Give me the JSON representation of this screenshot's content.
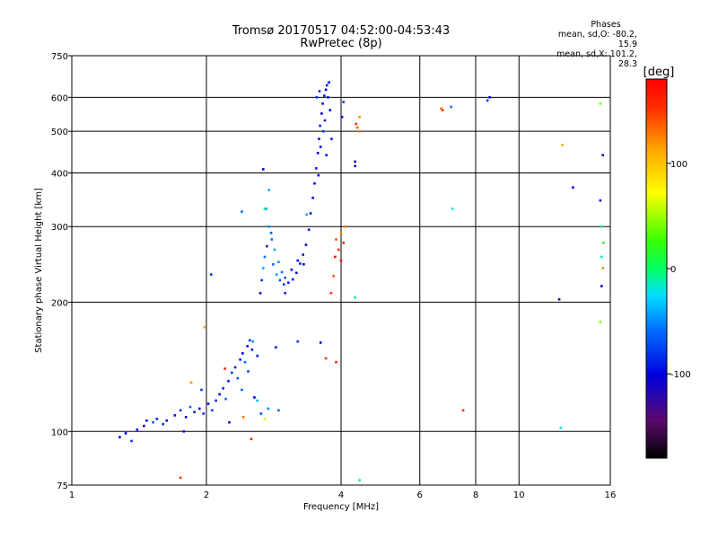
{
  "header": {
    "title": "Tromsø 20170517 04:52:00-04:53:43",
    "subtitle": "RwPretec (8p)"
  },
  "phases": {
    "title": "Phases",
    "line_o": "mean, sd,O: -80.2, 15.9",
    "line_x": "mean, sd,X: 101.2, 28.3"
  },
  "colorbar": {
    "label": "[deg]",
    "min": -180,
    "max": 180,
    "ticks": [
      -100,
      0,
      100
    ],
    "tick_labels": [
      "-100",
      "0",
      "100"
    ]
  },
  "chart_data": {
    "type": "scatter",
    "xlabel": "Frequency [MHz]",
    "ylabel": "Stationary phase Virtual Height [km]",
    "xscale": "log",
    "yscale": "log",
    "xlim": [
      1,
      16
    ],
    "ylim": [
      75,
      750
    ],
    "xticks": [
      1,
      2,
      4,
      6,
      8,
      10,
      16
    ],
    "xtick_labels": [
      "1",
      "2",
      "4",
      "6",
      "8",
      "10",
      "16"
    ],
    "yticks": [
      75,
      100,
      200,
      300,
      400,
      500,
      600,
      750
    ],
    "ytick_labels": [
      "75",
      "100",
      "200",
      "300",
      "400",
      "500",
      "600",
      "750"
    ],
    "grid": true,
    "series": [
      {
        "points": [
          [
            1.28,
            97,
            -95
          ],
          [
            1.32,
            99,
            -100
          ],
          [
            1.36,
            95,
            -80
          ],
          [
            1.4,
            101,
            -90
          ],
          [
            1.45,
            103,
            -100
          ],
          [
            1.47,
            106,
            -95
          ],
          [
            1.52,
            105,
            -70
          ],
          [
            1.55,
            107,
            -90
          ],
          [
            1.6,
            104,
            -85
          ],
          [
            1.63,
            106,
            -100
          ],
          [
            1.7,
            109,
            -95
          ],
          [
            1.75,
            112,
            -80
          ],
          [
            1.8,
            108,
            -95
          ],
          [
            1.84,
            114,
            -60
          ],
          [
            1.88,
            111,
            -90
          ],
          [
            1.93,
            113,
            -100
          ],
          [
            1.97,
            110,
            -85
          ],
          [
            2.02,
            116,
            -95
          ],
          [
            2.06,
            112,
            -75
          ],
          [
            2.1,
            118,
            -90
          ],
          [
            2.14,
            122,
            -100
          ],
          [
            2.18,
            126,
            -85
          ],
          [
            2.21,
            119,
            -60
          ],
          [
            2.24,
            131,
            -95
          ],
          [
            2.28,
            137,
            -80
          ],
          [
            2.32,
            141,
            -90
          ],
          [
            2.35,
            133,
            -70
          ],
          [
            2.38,
            147,
            -95
          ],
          [
            2.41,
            152,
            -100
          ],
          [
            2.44,
            145,
            -60
          ],
          [
            2.47,
            158,
            -95
          ],
          [
            2.5,
            163,
            -80
          ],
          [
            2.53,
            155,
            -90
          ],
          [
            2.56,
            120,
            -100
          ],
          [
            2.6,
            118,
            -40
          ],
          [
            2.65,
            110,
            -70
          ],
          [
            2.75,
            113,
            -50
          ],
          [
            2.9,
            112,
            -60
          ],
          [
            1.78,
            100,
            -95
          ],
          [
            1.95,
            125,
            -80
          ],
          [
            2.25,
            105,
            -100
          ],
          [
            2.4,
            125,
            -60
          ],
          [
            2.48,
            138,
            -75
          ],
          [
            2.52,
            96,
            160
          ],
          [
            2.54,
            162,
            -50
          ],
          [
            2.6,
            150,
            -100
          ],
          [
            2.86,
            157,
            -90
          ],
          [
            3.2,
            162,
            -80
          ],
          [
            3.6,
            161,
            -100
          ],
          [
            1.75,
            78,
            150
          ],
          [
            1.85,
            130,
            120
          ],
          [
            1.98,
            175,
            110
          ],
          [
            2.2,
            140,
            160
          ],
          [
            2.42,
            108,
            130
          ],
          [
            2.7,
            107,
            60
          ],
          [
            2.64,
            210,
            -100
          ],
          [
            2.66,
            225,
            -80
          ],
          [
            2.68,
            240,
            -40
          ],
          [
            2.7,
            255,
            -60
          ],
          [
            2.73,
            270,
            -90
          ],
          [
            2.76,
            300,
            -50
          ],
          [
            2.79,
            290,
            -70
          ],
          [
            2.82,
            245,
            -60
          ],
          [
            2.87,
            232,
            -45
          ],
          [
            2.92,
            225,
            -70
          ],
          [
            2.98,
            220,
            -80
          ],
          [
            3.05,
            222,
            -90
          ],
          [
            3.12,
            226,
            -95
          ],
          [
            3.18,
            234,
            -100
          ],
          [
            3.24,
            246,
            -90
          ],
          [
            3.29,
            258,
            -95
          ],
          [
            3.34,
            272,
            -100
          ],
          [
            3.39,
            295,
            -90
          ],
          [
            3.42,
            322,
            -95
          ],
          [
            3.46,
            350,
            -100
          ],
          [
            3.49,
            378,
            -95
          ],
          [
            3.52,
            410,
            -90
          ],
          [
            3.55,
            445,
            -100
          ],
          [
            3.57,
            480,
            -95
          ],
          [
            3.59,
            515,
            -90
          ],
          [
            3.62,
            550,
            -100
          ],
          [
            3.64,
            580,
            -95
          ],
          [
            3.67,
            605,
            -90
          ],
          [
            3.7,
            625,
            -100
          ],
          [
            3.72,
            640,
            -95
          ],
          [
            3.65,
            500,
            -80
          ],
          [
            3.6,
            460,
            -100
          ],
          [
            3.68,
            530,
            -90
          ],
          [
            3.74,
            600,
            -95
          ],
          [
            3.78,
            560,
            -100
          ],
          [
            3.81,
            480,
            -90
          ],
          [
            3.71,
            440,
            -100
          ],
          [
            3.58,
            620,
            -90
          ],
          [
            3.76,
            650,
            -95
          ],
          [
            3.53,
            600,
            -80
          ],
          [
            3.56,
            395,
            -100
          ],
          [
            2.68,
            408,
            -100
          ],
          [
            2.72,
            330,
            -50
          ],
          [
            2.76,
            365,
            -40
          ],
          [
            2.8,
            280,
            -60
          ],
          [
            2.84,
            265,
            -40
          ],
          [
            2.9,
            248,
            -50
          ],
          [
            2.95,
            235,
            -60
          ],
          [
            3.0,
            228,
            -70
          ],
          [
            3.1,
            238,
            -100
          ],
          [
            3.2,
            250,
            -95
          ],
          [
            3.35,
            320,
            -40
          ],
          [
            2.4,
            325,
            -60
          ],
          [
            2.05,
            232,
            -80
          ],
          [
            3.0,
            210,
            -90
          ],
          [
            3.3,
            245,
            -100
          ],
          [
            4.05,
            585,
            -80
          ],
          [
            4.02,
            540,
            -100
          ],
          [
            4.3,
            425,
            -100
          ],
          [
            4.3,
            415,
            -110
          ],
          [
            3.9,
            280,
            140
          ],
          [
            3.95,
            265,
            150
          ],
          [
            4.0,
            290,
            120
          ],
          [
            4.05,
            275,
            160
          ],
          [
            4.1,
            300,
            130
          ],
          [
            4.0,
            250,
            170
          ],
          [
            3.85,
            230,
            140
          ],
          [
            3.8,
            210,
            150
          ],
          [
            3.88,
            255,
            175
          ],
          [
            4.35,
            510,
            140
          ],
          [
            4.4,
            540,
            120
          ],
          [
            4.32,
            520,
            150
          ],
          [
            4.4,
            500,
            130
          ],
          [
            6.7,
            565,
            130
          ],
          [
            6.75,
            560,
            150
          ],
          [
            7.05,
            570,
            -60
          ],
          [
            8.5,
            590,
            -80
          ],
          [
            8.6,
            600,
            -100
          ],
          [
            7.5,
            112,
            150
          ],
          [
            3.7,
            148,
            150
          ],
          [
            3.9,
            145,
            160
          ],
          [
            4.3,
            205,
            -10
          ],
          [
            4.4,
            77,
            -10
          ],
          [
            7.1,
            330,
            -20
          ],
          [
            2.7,
            330,
            -10
          ],
          [
            12.5,
            465,
            110
          ],
          [
            13.2,
            370,
            -100
          ],
          [
            12.3,
            203,
            -120
          ],
          [
            12.4,
            102,
            -20
          ],
          [
            15.2,
            580,
            40
          ],
          [
            15.4,
            440,
            -100
          ],
          [
            15.2,
            345,
            -100
          ],
          [
            15.3,
            300,
            -10
          ],
          [
            15.45,
            275,
            20
          ],
          [
            15.3,
            255,
            -10
          ],
          [
            15.4,
            240,
            120
          ],
          [
            15.3,
            218,
            -100
          ],
          [
            15.2,
            180,
            40
          ]
        ]
      }
    ]
  }
}
